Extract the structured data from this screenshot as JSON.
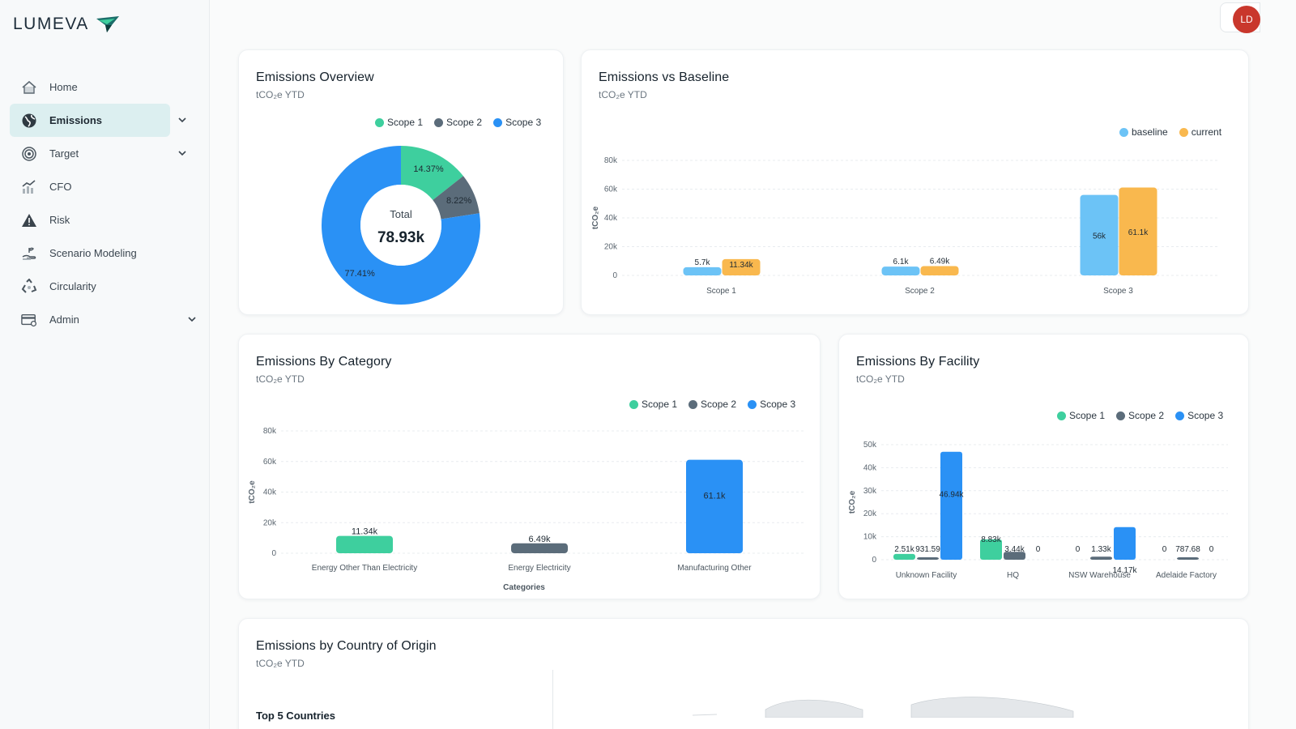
{
  "brand": {
    "name": "LUMEVA"
  },
  "user": {
    "initials": "LD"
  },
  "sidebar": {
    "items": [
      {
        "label": "Home",
        "icon": "home-icon",
        "active": false,
        "chevron": false
      },
      {
        "label": "Emissions",
        "icon": "globe-icon",
        "active": true,
        "chevron": true
      },
      {
        "label": "Target",
        "icon": "target-icon",
        "active": false,
        "chevron": true
      },
      {
        "label": "CFO",
        "icon": "chart-growth-icon",
        "active": false,
        "chevron": false
      },
      {
        "label": "Risk",
        "icon": "warning-icon",
        "active": false,
        "chevron": false
      },
      {
        "label": "Scenario Modeling",
        "icon": "hand-plant-icon",
        "active": false,
        "chevron": false
      },
      {
        "label": "Circularity",
        "icon": "recycle-icon",
        "active": false,
        "chevron": false
      },
      {
        "label": "Admin",
        "icon": "admin-card-icon",
        "active": false,
        "chevron": true
      }
    ]
  },
  "colors": {
    "scope1": "#3ecf9e",
    "scope2": "#5b6c7a",
    "scope3": "#2a91f5",
    "baseline": "#6cc3f6",
    "current": "#f9b84e",
    "active_bg": "#dceff0"
  },
  "cards": {
    "overview": {
      "title": "Emissions Overview",
      "subtitle": "tCO₂e YTD",
      "total_label": "Total",
      "total_value": "78.93k"
    },
    "baseline": {
      "title": "Emissions vs Baseline",
      "subtitle": "tCO₂e YTD"
    },
    "category": {
      "title": "Emissions By Category",
      "subtitle": "tCO₂e YTD"
    },
    "facility": {
      "title": "Emissions By Facility",
      "subtitle": "tCO₂e YTD"
    },
    "country": {
      "title": "Emissions by Country of Origin",
      "subtitle": "tCO₂e YTD",
      "list_title": "Top 5 Countries"
    }
  },
  "chart_data": [
    {
      "id": "overview",
      "type": "pie",
      "labels": [
        "Scope 1",
        "Scope 2",
        "Scope 3"
      ],
      "values": [
        14.37,
        8.22,
        77.41
      ],
      "value_labels": [
        "14.37%",
        "8.22%",
        "77.41%"
      ]
    },
    {
      "id": "baseline",
      "type": "bar",
      "categories": [
        "Scope 1",
        "Scope 2",
        "Scope 3"
      ],
      "series": [
        {
          "name": "baseline",
          "values": [
            5700,
            6100,
            56000
          ],
          "labels": [
            "5.7k",
            "6.1k",
            "56k"
          ]
        },
        {
          "name": "current",
          "values": [
            11340,
            6490,
            61100
          ],
          "labels": [
            "11.34k",
            "6.49k",
            "61.1k"
          ]
        }
      ],
      "ylabel": "tCO₂e",
      "yticks": [
        "0",
        "20k",
        "40k",
        "60k",
        "80k"
      ],
      "ylim": [
        0,
        80000
      ]
    },
    {
      "id": "category",
      "type": "bar",
      "categories": [
        "Energy Other Than Electricity",
        "Energy Electricity",
        "Manufacturing Other"
      ],
      "series": [
        {
          "name": "Scope 1",
          "values": [
            11340,
            0,
            0
          ]
        },
        {
          "name": "Scope 2",
          "values": [
            0,
            6490,
            0
          ]
        },
        {
          "name": "Scope 3",
          "values": [
            0,
            0,
            61100
          ]
        }
      ],
      "bar_labels": [
        "11.34k",
        "6.49k",
        "61.1k"
      ],
      "xlabel": "Categories",
      "ylabel": "tCO₂e",
      "yticks": [
        "0",
        "20k",
        "40k",
        "60k",
        "80k"
      ],
      "ylim": [
        0,
        80000
      ]
    },
    {
      "id": "facility",
      "type": "bar",
      "categories": [
        "Unknown Facility",
        "HQ",
        "NSW Warehouse",
        "Adelaide Factory"
      ],
      "series": [
        {
          "name": "Scope 1",
          "values": [
            2510,
            8830,
            0,
            0
          ],
          "labels": [
            "2.51k",
            "8.83k",
            "0",
            "0"
          ]
        },
        {
          "name": "Scope 2",
          "values": [
            931.59,
            3440,
            1330,
            787.68
          ],
          "labels": [
            "931.59",
            "3.44k",
            "1.33k",
            "787.68"
          ]
        },
        {
          "name": "Scope 3",
          "values": [
            46940,
            0,
            14170,
            0
          ],
          "labels": [
            "46.94k",
            "0",
            "14.17k",
            "0"
          ]
        }
      ],
      "ylabel": "tCO₂e",
      "yticks": [
        "0",
        "10k",
        "20k",
        "30k",
        "40k",
        "50k"
      ],
      "ylim": [
        0,
        50000
      ]
    }
  ]
}
